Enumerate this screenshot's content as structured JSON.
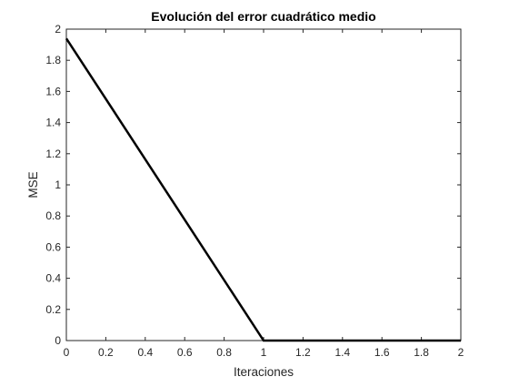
{
  "chart_data": {
    "type": "line",
    "title": "Evolución del error cuadrático medio",
    "xlabel": "Iteraciones",
    "ylabel": "MSE",
    "xlim": [
      0,
      2
    ],
    "ylim": [
      0,
      2
    ],
    "xticks": [
      "0",
      "0.2",
      "0.4",
      "0.6",
      "0.8",
      "1",
      "1.2",
      "1.4",
      "1.6",
      "1.8",
      "2"
    ],
    "yticks": [
      "0",
      "0.2",
      "0.4",
      "0.6",
      "0.8",
      "1",
      "1.2",
      "1.4",
      "1.6",
      "1.8",
      "2"
    ],
    "grid": false,
    "series": [
      {
        "color": "#000000",
        "x": [
          0,
          1,
          2
        ],
        "y": [
          1.94,
          0,
          0
        ]
      }
    ]
  }
}
